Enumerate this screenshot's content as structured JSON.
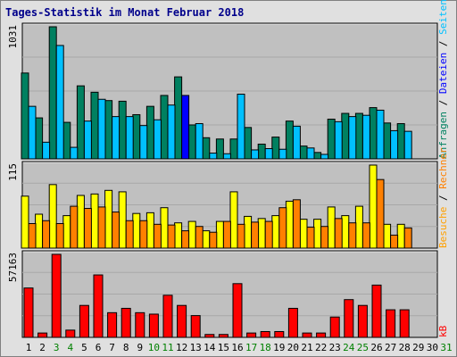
{
  "chart_data": {
    "type": "bar",
    "title": "Tages-Statistik im Monat Februar 2018",
    "categories": [
      "1",
      "2",
      "3",
      "4",
      "5",
      "6",
      "7",
      "8",
      "9",
      "10",
      "11",
      "12",
      "13",
      "14",
      "15",
      "16",
      "17",
      "18",
      "19",
      "20",
      "21",
      "22",
      "23",
      "24",
      "25",
      "26",
      "27",
      "28",
      "29",
      "30",
      "31"
    ],
    "weekend_days": [
      "3",
      "4",
      "10",
      "11",
      "17",
      "18",
      "24",
      "25",
      "31"
    ],
    "colors": {
      "day_label": "#000000",
      "weekend_label": "#008000",
      "anfragen": "#008060",
      "dateien": "#00c0ff",
      "seiten": "#ffff00",
      "besuche": "#ff8000",
      "kb": "#ff0000",
      "highlight_dateien": "#0000ff",
      "panel_bg": "#c0c0c0"
    },
    "panels": [
      {
        "name": "anfragen_dateien",
        "max_label": "1031",
        "ymax": 1031,
        "right_labels": [
          {
            "text": "Anfragen",
            "color": "#008060"
          },
          {
            "text": " / ",
            "color": "#000000"
          },
          {
            "text": "Dateien",
            "color": "#0000ff"
          },
          {
            "text": " / ",
            "color": "#000000"
          },
          {
            "text": "Seiten",
            "color": "#00c0ff"
          }
        ],
        "series": [
          {
            "name": "Anfragen",
            "color": "#008060",
            "values": [
              670,
              320,
              1031,
              285,
              570,
              520,
              455,
              450,
              345,
              410,
              495,
              640,
              265,
              165,
              155,
              155,
              245,
              115,
              170,
              295,
              100,
              50,
              310,
              355,
              355,
              400,
              280,
              275,
              0,
              0,
              0
            ]
          },
          {
            "name": "Dateien",
            "color": "#00c0ff",
            "values": [
              410,
              130,
              885,
              90,
              295,
              465,
              330,
              330,
              260,
              305,
              420,
              495,
              275,
              45,
              40,
              505,
              70,
              80,
              75,
              255,
              85,
              35,
              290,
              330,
              340,
              380,
              220,
              215,
              0,
              0,
              0
            ]
          }
        ]
      },
      {
        "name": "seiten_besuche",
        "max_label": "115",
        "ymax": 115,
        "right_labels": [
          {
            "text": "Besuche",
            "color": "#ffa000"
          },
          {
            "text": " / ",
            "color": "#000000"
          },
          {
            "text": "Rechner",
            "color": "#ff8000"
          }
        ],
        "series": [
          {
            "name": "Seiten",
            "color": "#ffff00",
            "values": [
              72,
              47,
              88,
              45,
              73,
              75,
              80,
              78,
              48,
              49,
              56,
              35,
              37,
              24,
              37,
              78,
              44,
              41,
              45,
              65,
              40,
              40,
              57,
              45,
              58,
              115,
              33,
              33,
              0,
              0,
              0
            ]
          },
          {
            "name": "Besuche",
            "color": "#ff8000",
            "values": [
              34,
              38,
              34,
              58,
              55,
              57,
              50,
              38,
              38,
              33,
              32,
              24,
              30,
              22,
              37,
              33,
              36,
              37,
              56,
              67,
              29,
              30,
              41,
              35,
              35,
              95,
              18,
              28,
              0,
              0,
              0
            ]
          }
        ]
      },
      {
        "name": "kb",
        "max_label": "57163",
        "ymax": 57163,
        "right_labels": [
          {
            "text": "kB",
            "color": "#ff0000"
          }
        ],
        "series": [
          {
            "name": "kB",
            "color": "#ff0000",
            "values": [
              34000,
              3000,
              57163,
              5000,
              22000,
              43000,
              17000,
              20000,
              17000,
              16000,
              29000,
              22000,
              15000,
              2000,
              2000,
              37000,
              3000,
              4000,
              4000,
              20000,
              3000,
              3000,
              14000,
              26000,
              22000,
              36000,
              19000,
              19000,
              0,
              0,
              0
            ]
          }
        ]
      }
    ]
  }
}
